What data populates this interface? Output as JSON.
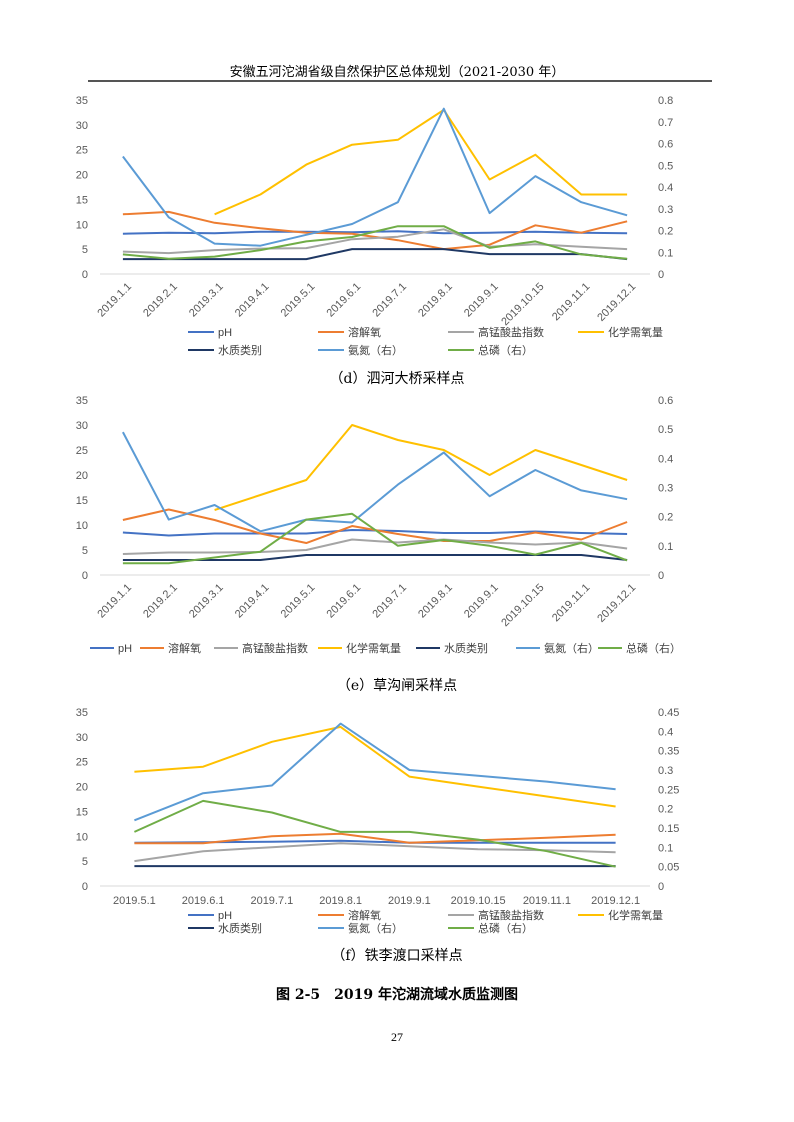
{
  "header": {
    "title": "安徽五河沱湖省级自然保护区总体规划（2021-2030 年）"
  },
  "colors": {
    "pH": "#4472C4",
    "do": "#ED7D31",
    "codmn": "#A5A5A5",
    "cod": "#FFC000",
    "wqclass": "#1F3864",
    "nh3n": "#5B9BD5",
    "tp": "#70AD47"
  },
  "chart_data": [
    {
      "type": "line",
      "caption": "（d）泗河大桥采样点",
      "x": [
        "2019.1.1",
        "2019.2.1",
        "2019.3.1",
        "2019.4.1",
        "2019.5.1",
        "2019.6.1",
        "2019.7.1",
        "2019.8.1",
        "2019.9.1",
        "2019.10.15",
        "2019.11.1",
        "2019.12.1"
      ],
      "ylim": [
        0,
        35
      ],
      "yticks": [
        "0",
        "5",
        "10",
        "15",
        "20",
        "25",
        "30",
        "35"
      ],
      "y2lim": [
        0,
        0.8
      ],
      "y2ticks": [
        "0",
        "0.1",
        "0.2",
        "0.3",
        "0.4",
        "0.5",
        "0.6",
        "0.7",
        "0.8"
      ],
      "legend": [
        "pH",
        "溶解氧",
        "高锰酸盐指数",
        "化学需氧量",
        "水质类别",
        "氨氮（右）",
        "总磷（右）"
      ],
      "series": [
        {
          "name": "pH",
          "key": "pH",
          "axis": "left",
          "values": [
            8.1,
            8.3,
            8.2,
            8.5,
            8.5,
            8.4,
            8.6,
            8.2,
            8.3,
            8.5,
            8.3,
            8.2
          ]
        },
        {
          "name": "溶解氧",
          "key": "do",
          "axis": "left",
          "values": [
            12,
            12.5,
            10.3,
            9.2,
            8.3,
            8.1,
            6.8,
            5,
            5.9,
            9.8,
            8.3,
            10.6
          ]
        },
        {
          "name": "高锰酸盐指数",
          "key": "codmn",
          "axis": "left",
          "values": [
            4.5,
            4.2,
            4.8,
            5.1,
            5.2,
            7,
            7.5,
            9,
            5.5,
            6,
            5.5,
            5
          ]
        },
        {
          "name": "化学需氧量",
          "key": "cod",
          "axis": "left",
          "values": [
            null,
            null,
            12,
            16,
            22,
            26,
            27,
            33,
            19,
            24,
            16,
            16
          ]
        },
        {
          "name": "水质类别",
          "key": "wqclass",
          "axis": "left",
          "values": [
            3,
            3,
            3,
            3,
            3,
            5,
            5,
            5,
            4,
            4,
            4,
            3
          ]
        },
        {
          "name": "氨氮（右）",
          "key": "nh3n",
          "axis": "right",
          "values": [
            0.54,
            0.26,
            0.14,
            0.13,
            0.18,
            0.23,
            0.33,
            0.76,
            0.28,
            0.45,
            0.33,
            0.27
          ]
        },
        {
          "name": "总磷（右）",
          "key": "tp",
          "axis": "right",
          "values": [
            0.09,
            0.07,
            0.08,
            0.11,
            0.15,
            0.17,
            0.22,
            0.22,
            0.12,
            0.15,
            0.09,
            0.07
          ]
        }
      ]
    },
    {
      "type": "line",
      "caption": "（e）草沟闸采样点",
      "x": [
        "2019.1.1",
        "2019.2.1",
        "2019.3.1",
        "2019.4.1",
        "2019.5.1",
        "2019.6.1",
        "2019.7.1",
        "2019.8.1",
        "2019.9.1",
        "2019.10.15",
        "2019.11.1",
        "2019.12.1"
      ],
      "ylim": [
        0,
        35
      ],
      "yticks": [
        "0",
        "5",
        "10",
        "15",
        "20",
        "25",
        "30",
        "35"
      ],
      "y2lim": [
        0,
        0.6
      ],
      "y2ticks": [
        "0",
        "0.1",
        "0.2",
        "0.3",
        "0.4",
        "0.5",
        "0.6"
      ],
      "legend": [
        "pH",
        "溶解氧",
        "高锰酸盐指数",
        "化学需氧量",
        "水质类别",
        "氨氮（右）",
        "总磷（右）"
      ],
      "series": [
        {
          "name": "pH",
          "key": "pH",
          "axis": "left",
          "values": [
            8.5,
            7.9,
            8.3,
            8.3,
            8.3,
            9,
            8.8,
            8.4,
            8.4,
            8.7,
            8.4,
            8.2
          ]
        },
        {
          "name": "溶解氧",
          "key": "do",
          "axis": "left",
          "values": [
            11,
            13.1,
            11,
            8.3,
            6.4,
            9.8,
            8.2,
            6.8,
            6.8,
            8.5,
            7.1,
            10.6
          ]
        },
        {
          "name": "高锰酸盐指数",
          "key": "codmn",
          "axis": "left",
          "values": [
            4.2,
            4.5,
            4.5,
            4.6,
            5,
            7.1,
            6.5,
            7.1,
            6.5,
            6.1,
            6.5,
            5.3
          ]
        },
        {
          "name": "化学需氧量",
          "key": "cod",
          "axis": "left",
          "values": [
            null,
            null,
            13,
            16,
            19,
            30,
            27,
            25,
            20,
            25,
            22,
            19
          ]
        },
        {
          "name": "水质类别",
          "key": "wqclass",
          "axis": "left",
          "values": [
            3,
            3,
            3,
            3,
            4,
            4,
            4,
            4,
            4,
            4,
            4,
            3
          ]
        },
        {
          "name": "氨氮（右）",
          "key": "nh3n",
          "axis": "right",
          "values": [
            0.49,
            0.19,
            0.24,
            0.15,
            0.19,
            0.18,
            0.31,
            0.42,
            0.27,
            0.36,
            0.29,
            0.26
          ]
        },
        {
          "name": "总磷（右）",
          "key": "tp",
          "axis": "right",
          "values": [
            0.04,
            0.04,
            0.06,
            0.08,
            0.19,
            0.21,
            0.1,
            0.12,
            0.1,
            0.07,
            0.11,
            0.05
          ]
        }
      ]
    },
    {
      "type": "line",
      "caption": "（f）铁李渡口采样点",
      "x": [
        "2019.5.1",
        "2019.6.1",
        "2019.7.1",
        "2019.8.1",
        "2019.9.1",
        "2019.10.15",
        "2019.11.1",
        "2019.12.1"
      ],
      "ylim": [
        0,
        35
      ],
      "yticks": [
        "0",
        "5",
        "10",
        "15",
        "20",
        "25",
        "30",
        "35"
      ],
      "y2lim": [
        0,
        0.45
      ],
      "y2ticks": [
        "0",
        "0.05",
        "0.1",
        "0.15",
        "0.2",
        "0.25",
        "0.3",
        "0.35",
        "0.4",
        "0.45"
      ],
      "legend": [
        "pH",
        "溶解氧",
        "高锰酸盐指数",
        "化学需氧量",
        "水质类别",
        "氨氮（右）",
        "总磷（右）"
      ],
      "series": [
        {
          "name": "pH",
          "key": "pH",
          "axis": "left",
          "values": [
            8.7,
            8.8,
            8.9,
            9.1,
            8.7,
            8.7,
            8.7,
            8.7
          ]
        },
        {
          "name": "溶解氧",
          "key": "do",
          "axis": "left",
          "values": [
            8.6,
            8.6,
            10,
            10.5,
            8.7,
            9.2,
            9.7,
            10.3
          ]
        },
        {
          "name": "高锰酸盐指数",
          "key": "codmn",
          "axis": "left",
          "values": [
            5,
            7,
            7.8,
            8.6,
            8,
            7.4,
            7.2,
            6.8
          ]
        },
        {
          "name": "化学需氧量",
          "key": "cod",
          "axis": "left",
          "values": [
            23,
            24,
            29,
            32,
            22,
            20,
            18,
            16
          ]
        },
        {
          "name": "水质类别",
          "key": "wqclass",
          "axis": "left",
          "values": [
            4,
            4,
            4,
            4,
            4,
            4,
            4,
            4
          ]
        },
        {
          "name": "氨氮（右）",
          "key": "nh3n",
          "axis": "right",
          "values": [
            0.17,
            0.24,
            0.26,
            0.42,
            0.3,
            0.285,
            0.27,
            0.25
          ]
        },
        {
          "name": "总磷（右）",
          "key": "tp",
          "axis": "right",
          "values": [
            0.14,
            0.22,
            0.19,
            0.14,
            0.14,
            0.12,
            0.09,
            0.05
          ]
        }
      ]
    }
  ],
  "figure_caption": "图 2-5　2019 年沱湖流域水质监测图",
  "page_number": "27"
}
